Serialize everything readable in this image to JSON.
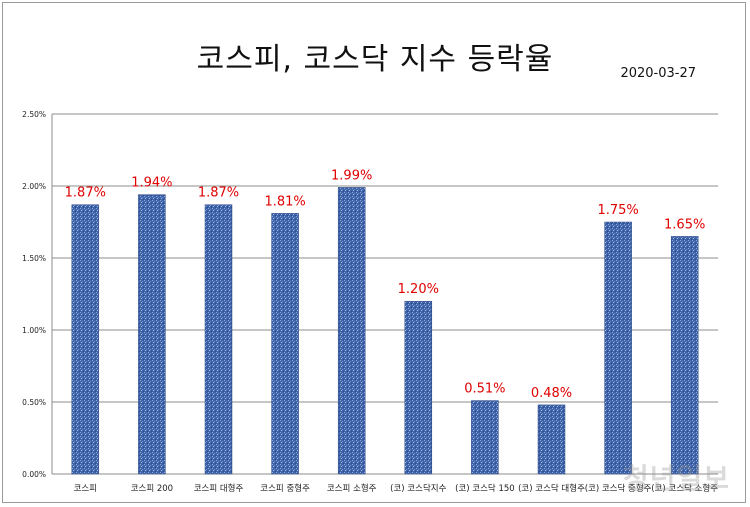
{
  "title": "코스피, 코스닥 지수 등락율",
  "date": "2020-03-27",
  "watermark": "청년일보",
  "colors": {
    "bar": "#3e63a8",
    "bar_texture": "#8fa8d8",
    "data_label": "#e00000",
    "grid": "#8c8c8c"
  },
  "chart_data": {
    "type": "bar",
    "title": "코스피, 코스닥 지수 등락율",
    "categories": [
      "코스피",
      "코스피 200",
      "코스피 대형주",
      "코스피 중형주",
      "코스피 소형주",
      "(코) 코스닥지수",
      "(코) 코스닥 150",
      "(코) 코스닥 대형주",
      "(코) 코스닥 중형주",
      "(코) 코스닥 소형주"
    ],
    "values": [
      1.87,
      1.94,
      1.87,
      1.81,
      1.99,
      1.2,
      0.51,
      0.48,
      1.75,
      1.65
    ],
    "data_labels": [
      "1.87%",
      "1.94%",
      "1.87%",
      "1.81%",
      "1.99%",
      "1.20%",
      "0.51%",
      "0.48%",
      "1.75%",
      "1.65%"
    ],
    "y_ticks": [
      "0.00%",
      "0.50%",
      "1.00%",
      "1.50%",
      "2.00%",
      "2.50%"
    ],
    "ylim": [
      0,
      2.5
    ],
    "grid": true,
    "xlabel": "",
    "ylabel": ""
  }
}
